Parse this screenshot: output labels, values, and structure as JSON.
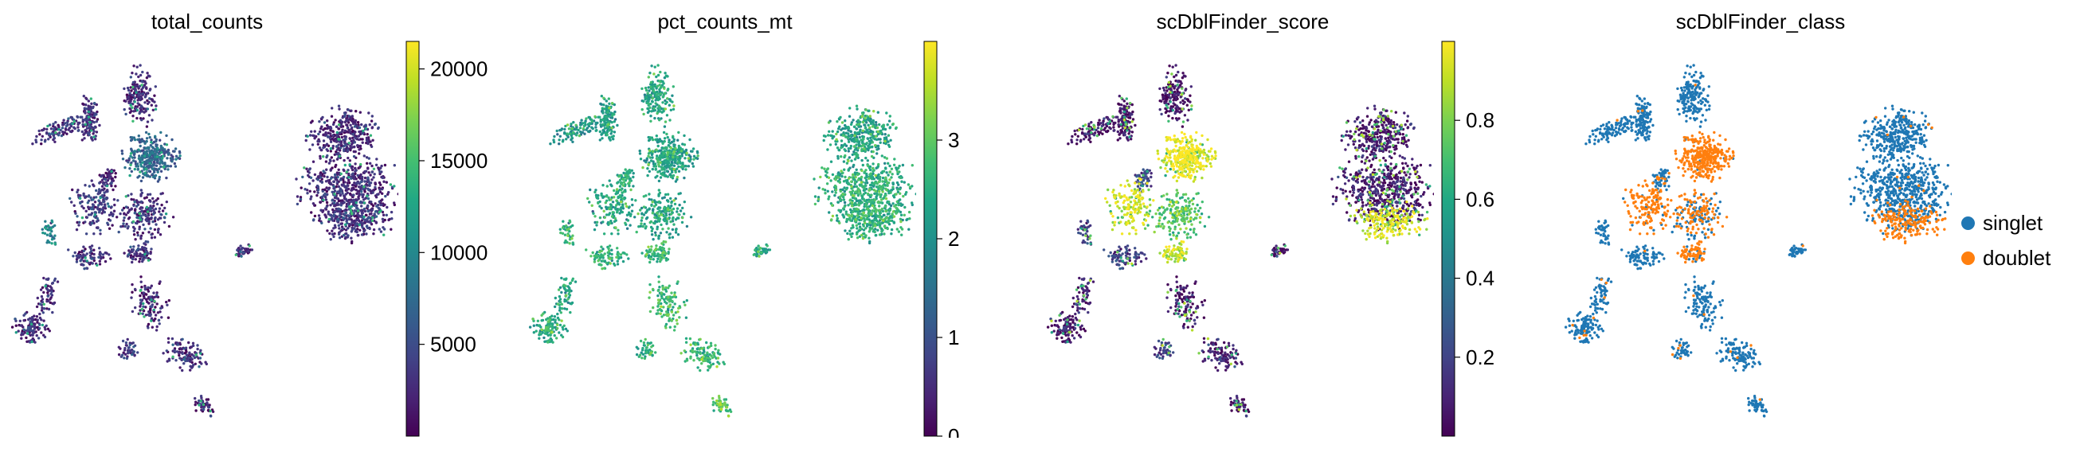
{
  "chart_data": [
    {
      "type": "scatter",
      "title": "total_counts",
      "xlabel": "",
      "ylabel": "",
      "grid": false,
      "colormap": "viridis",
      "colorbar": {
        "min": 0,
        "max": 21500,
        "ticks": [
          5000,
          10000,
          15000,
          20000
        ],
        "tick_labels": [
          "5000",
          "10000",
          "15000",
          "20000"
        ]
      },
      "cluster_values": [
        2200,
        2300,
        3000,
        6500,
        3500,
        2500,
        2200,
        2800,
        2400,
        2000,
        2300,
        3200,
        2600,
        2100,
        2200,
        2800,
        2100,
        3800,
        9000,
        2500
      ],
      "hot_fraction": 0.05
    },
    {
      "type": "scatter",
      "title": "pct_counts_mt",
      "xlabel": "",
      "ylabel": "",
      "grid": false,
      "colormap": "viridis",
      "colorbar": {
        "min": 0,
        "max": 4.0,
        "ticks": [
          0,
          1,
          2,
          3
        ],
        "tick_labels": [
          "0",
          "1",
          "2",
          "3"
        ]
      },
      "cluster_values": [
        2.3,
        2.1,
        2.0,
        2.2,
        2.3,
        2.2,
        2.4,
        2.3,
        2.4,
        2.2,
        2.4,
        2.5,
        2.3,
        2.7,
        2.5,
        2.6,
        2.9,
        2.5,
        2.4,
        2.6
      ],
      "hot_fraction": 0.1
    },
    {
      "type": "scatter",
      "title": "scDblFinder_score",
      "xlabel": "",
      "ylabel": "",
      "grid": false,
      "colormap": "viridis",
      "colorbar": {
        "min": 0.0,
        "max": 1.0,
        "ticks": [
          0.2,
          0.4,
          0.6,
          0.8
        ],
        "tick_labels": [
          "0.2",
          "0.4",
          "0.6",
          "0.8"
        ]
      },
      "cluster_values": [
        0.03,
        0.03,
        0.04,
        0.97,
        0.93,
        0.7,
        0.15,
        0.1,
        0.05,
        0.05,
        0.05,
        0.95,
        0.05,
        0.05,
        0.05,
        0.9,
        0.05,
        0.2,
        0.15,
        0.25
      ],
      "hot_fraction": 0.12
    },
    {
      "type": "scatter",
      "title": "scDblFinder_class",
      "xlabel": "",
      "ylabel": "",
      "grid": false,
      "legend": "right",
      "categories": [
        "singlet",
        "doublet"
      ],
      "colors": [
        "#1f77b4",
        "#ff7f0e"
      ],
      "cluster_doublet_fraction": [
        0.01,
        0.01,
        0.02,
        0.97,
        0.9,
        0.55,
        0.04,
        0.03,
        0.02,
        0.02,
        0.02,
        0.9,
        0.02,
        0.02,
        0.02,
        0.85,
        0.02,
        0.06,
        0.05,
        0.06
      ]
    }
  ]
}
